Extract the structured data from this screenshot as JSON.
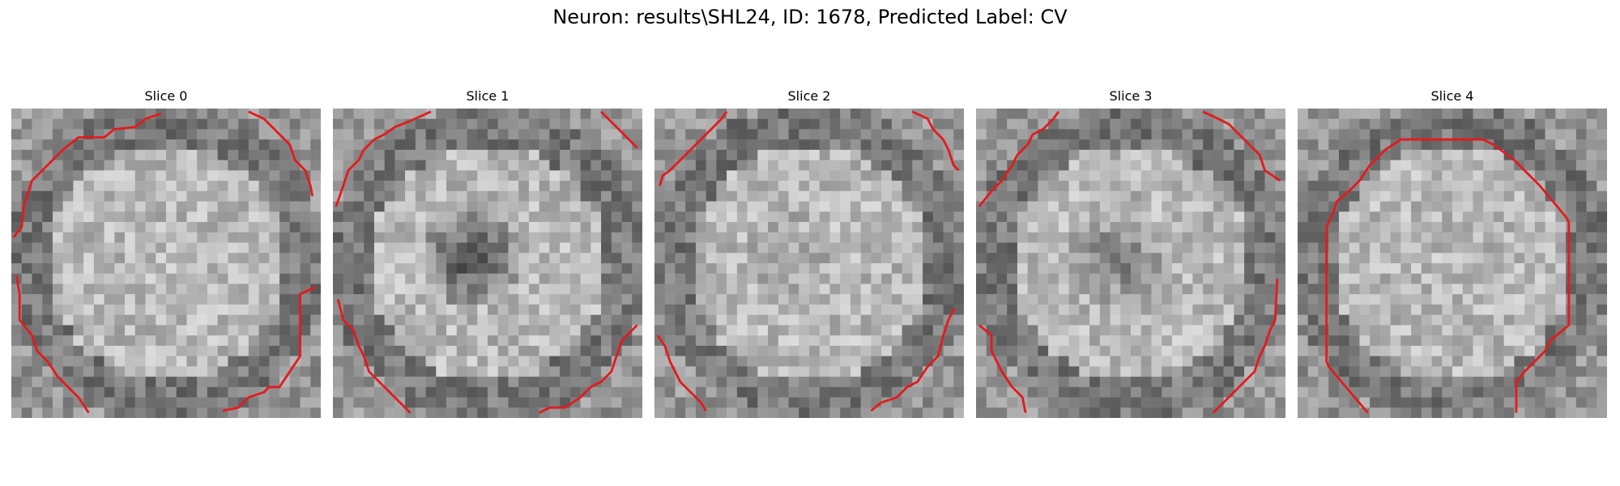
{
  "figure": {
    "title": "Neuron: results\\SHL24, ID: 1678, Predicted Label: CV"
  },
  "slices": [
    {
      "title": "Slice 0",
      "center_dark": 0.0
    },
    {
      "title": "Slice 1",
      "center_dark": 1.0
    },
    {
      "title": "Slice 2",
      "center_dark": 0.15
    },
    {
      "title": "Slice 3",
      "center_dark": 0.55
    },
    {
      "title": "Slice 4",
      "center_dark": 0.0
    }
  ],
  "contour_color": "#e41a1c",
  "colormap": "grayscale"
}
